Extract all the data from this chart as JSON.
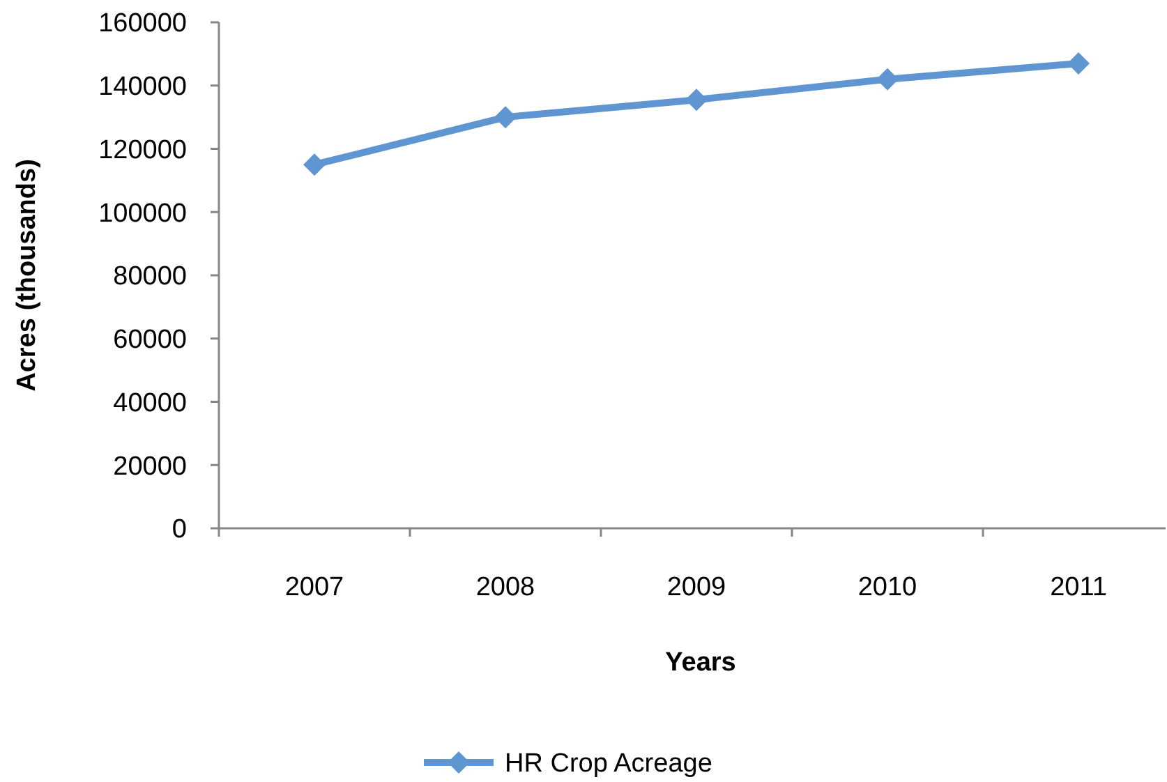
{
  "chart_data": {
    "type": "line",
    "xlabel": "Years",
    "ylabel": "Acres (thousands)",
    "categories": [
      "2007",
      "2008",
      "2009",
      "2010",
      "2011"
    ],
    "series": [
      {
        "name": "HR Crop Acreage",
        "color": "#5f95d0",
        "values": [
          115000,
          130000,
          135500,
          142000,
          147000
        ]
      }
    ],
    "ylim": [
      0,
      160000
    ],
    "yticks": [
      0,
      20000,
      40000,
      60000,
      80000,
      100000,
      120000,
      140000,
      160000
    ],
    "grid": false,
    "legend": "bottom",
    "marker": "diamond",
    "line_style": "solid"
  }
}
